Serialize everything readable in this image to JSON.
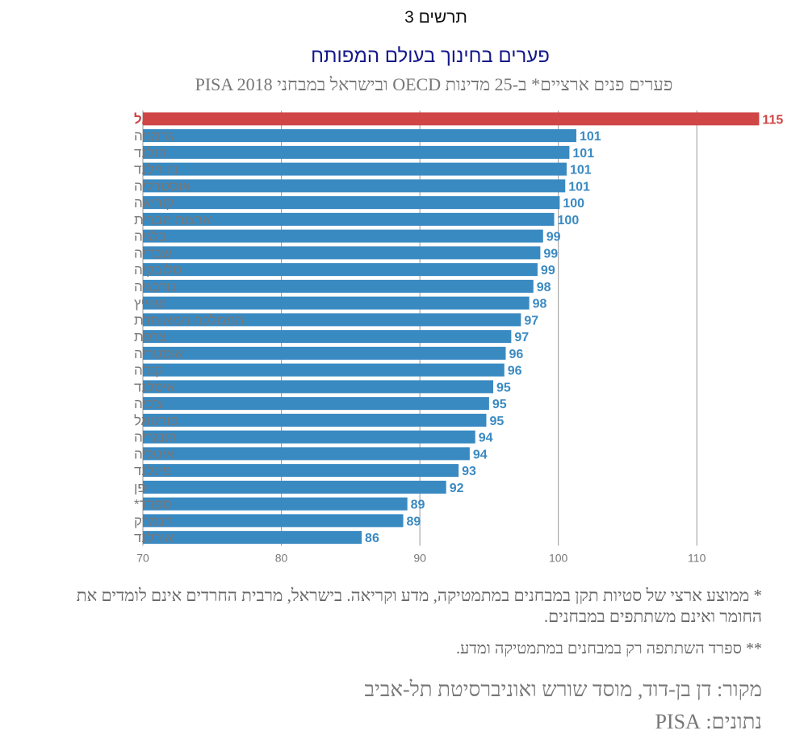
{
  "figure_label": "תרשים 3",
  "title": "פערים בחינוך בעולם המפותח",
  "subtitle": "פערים פנים ארציים* ב-25 מדינות OECD ובישראל במבחני PISA 2018",
  "notes": {
    "note1": "* ממוצע ארצי של סטיות תקן במבחנים במתמטיקה, מדע וקריאה. בישראל, מרבית החרדים אינם לומדים את החומר ואינם משתתפים במבחנים.",
    "note2": "** ספרד השתתפה רק במבחנים במתמטיקה ומדע."
  },
  "source": "מקור: דן בן-דוד, מוסד שורש ואוניברסיטת תל-אביב",
  "data_source": "נתונים: PISA",
  "colors": {
    "highlight": "#d04545",
    "bar": "#3a8ac2",
    "label": "#3a8ac2",
    "category_text": "#777777",
    "grid": "#999999",
    "title": "#15188a"
  },
  "chart_data": {
    "type": "bar",
    "orientation": "horizontal",
    "categories": [
      "ישראל",
      "גרמניה",
      "הולנד",
      "ניו זילנד",
      "אוסטרליה",
      "קוריאה",
      "ארצות הברית",
      "בלגיה",
      "שבדיה",
      "סלובקיה",
      "נורבגיה",
      "שווייץ",
      "הממלכה המאוחדת",
      "צרפת",
      "אוסטריה",
      "קנדה",
      "איסלנד",
      "צ'כיה",
      "פורטוגל",
      "הונגריה",
      "איטליה",
      "פינלנד",
      "יפן",
      "ספרד*",
      "דנמרק",
      "אירלנד"
    ],
    "values": [
      114.5,
      101.3,
      100.8,
      100.6,
      100.5,
      100.1,
      99.7,
      98.9,
      98.7,
      98.5,
      98.2,
      97.9,
      97.3,
      96.6,
      96.2,
      96.1,
      95.3,
      95.0,
      94.8,
      94.0,
      93.6,
      92.8,
      91.9,
      89.1,
      88.8,
      85.8
    ],
    "value_labels": [
      "115",
      "101",
      "101",
      "101",
      "101",
      "100",
      "100",
      "99",
      "99",
      "99",
      "98",
      "98",
      "97",
      "97",
      "96",
      "96",
      "95",
      "95",
      "95",
      "94",
      "94",
      "93",
      "92",
      "89",
      "89",
      "86"
    ],
    "highlight_index": 0,
    "xlim": [
      70,
      115
    ],
    "xticks": [
      70,
      80,
      90,
      100,
      110
    ],
    "grid": true,
    "xlabel": "",
    "ylabel": ""
  }
}
